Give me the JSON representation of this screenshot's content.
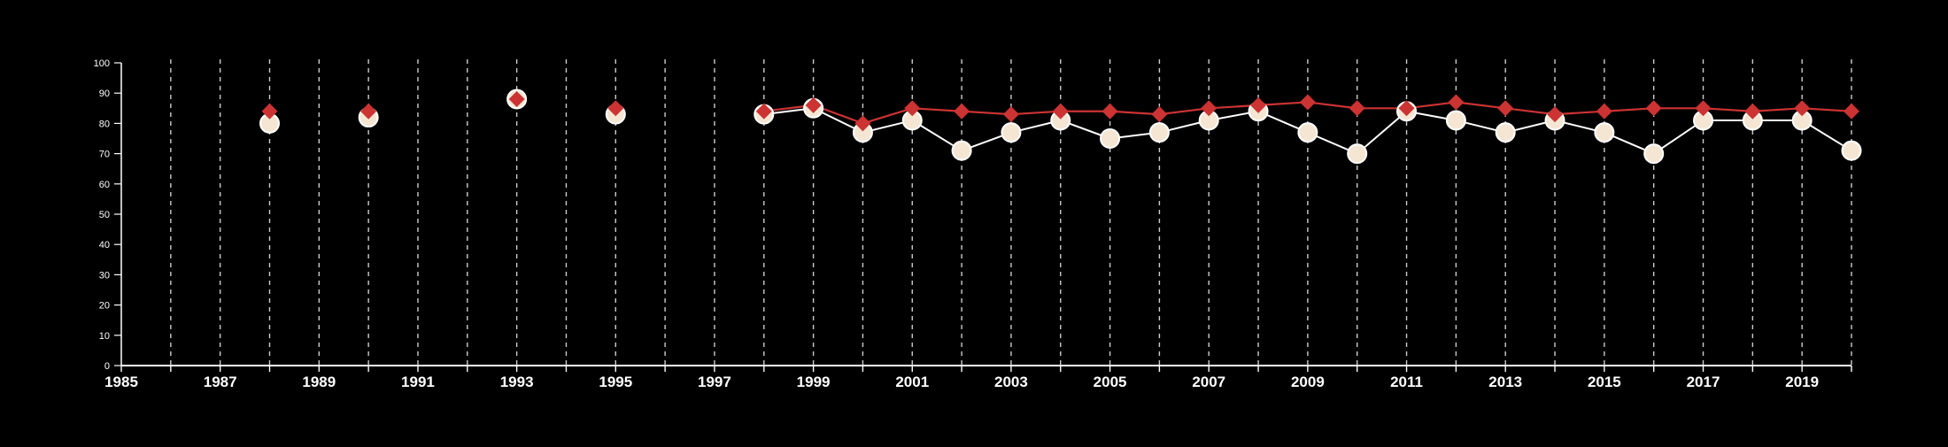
{
  "colors": {
    "background": "#000000",
    "axis": "#ffffff",
    "gridline": "#cccccc",
    "series_a_line": "#ffffff",
    "series_a_marker_fill": "#f5e6d3",
    "series_b": "#cc3333"
  },
  "chart_data": {
    "type": "line",
    "title": "",
    "xlabel": "",
    "ylabel": "",
    "xlim": [
      1985,
      2020
    ],
    "ylim": [
      0,
      100
    ],
    "x_ticks_labeled": [
      "1985",
      "1987",
      "1989",
      "1991",
      "1993",
      "1995",
      "1997",
      "1999",
      "2001",
      "2003",
      "2005",
      "2007",
      "2009",
      "2011",
      "2013",
      "2015",
      "2017",
      "2019"
    ],
    "y_ticks": [
      "0",
      "10",
      "20",
      "30",
      "40",
      "50",
      "60",
      "70",
      "80",
      "90",
      "100"
    ],
    "grid": "vertical dashed lines at each year",
    "legend": "none",
    "series": [
      {
        "marker": "circle",
        "x": [
          1988,
          1990,
          1993,
          1995,
          1998,
          1999,
          2000,
          2001,
          2002,
          2003,
          2004,
          2005,
          2006,
          2007,
          2008,
          2009,
          2010,
          2011,
          2012,
          2013,
          2014,
          2015,
          2016,
          2017,
          2018,
          2019,
          2020
        ],
        "values": [
          80,
          82,
          88,
          83,
          83,
          85,
          77,
          81,
          71,
          77,
          81,
          75,
          77,
          81,
          84,
          77,
          70,
          84,
          81,
          77,
          81,
          77,
          70,
          81,
          81,
          81,
          71
        ]
      },
      {
        "marker": "diamond",
        "x": [
          1988,
          1990,
          1993,
          1995,
          1998,
          1999,
          2000,
          2001,
          2002,
          2003,
          2004,
          2005,
          2006,
          2007,
          2008,
          2009,
          2010,
          2011,
          2012,
          2013,
          2014,
          2015,
          2016,
          2017,
          2018,
          2019,
          2020
        ],
        "values": [
          84,
          84,
          88,
          85,
          84,
          86,
          80,
          85,
          84,
          83,
          84,
          84,
          83,
          85,
          86,
          87,
          85,
          85,
          87,
          85,
          83,
          84,
          85,
          85,
          84,
          85,
          84
        ]
      }
    ]
  }
}
